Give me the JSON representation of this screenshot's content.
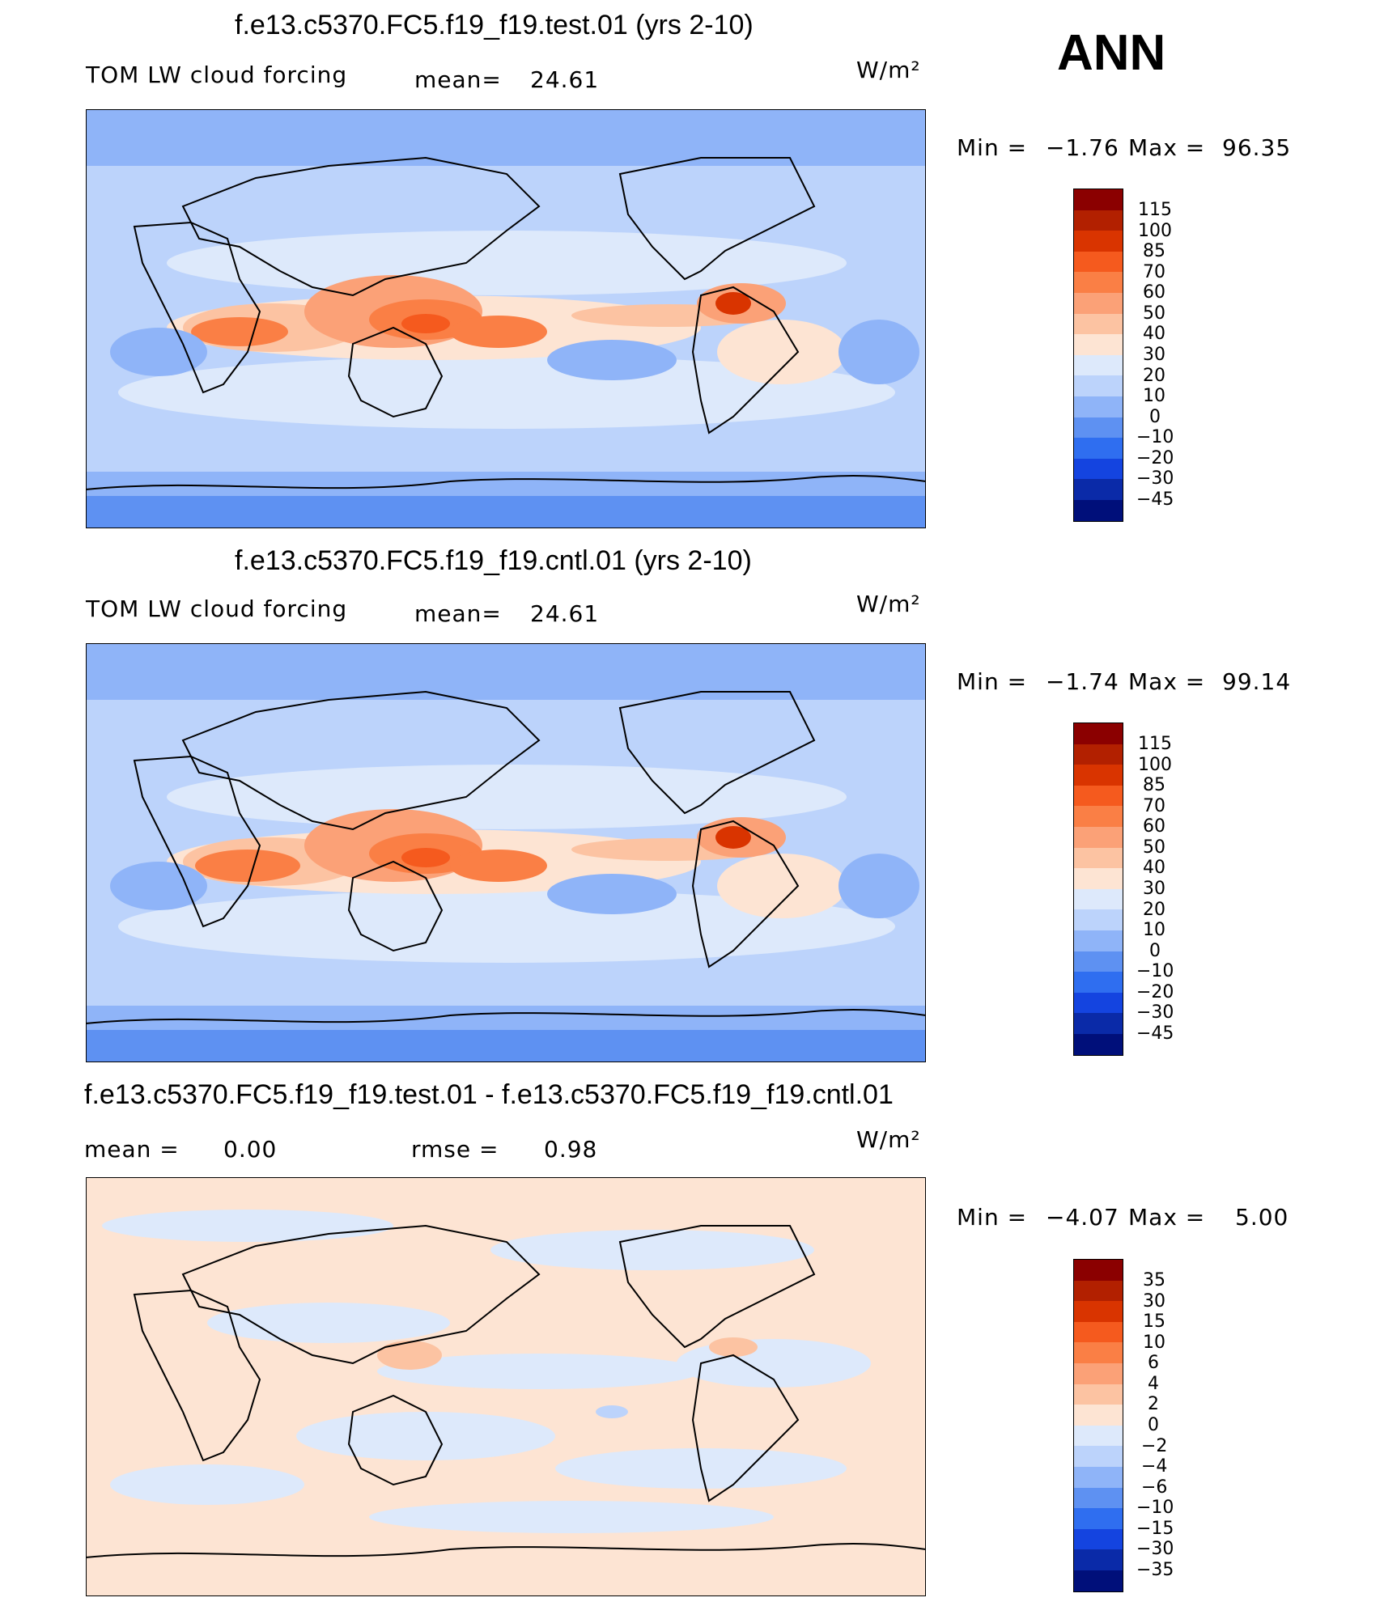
{
  "season": "ANN",
  "panels": [
    {
      "title": "f.e13.c5370.FC5.f19_f19.test.01 (yrs 2-10)",
      "left_label": "TOM LW cloud forcing",
      "mean_label": "mean=",
      "mean_value": "24.61",
      "units": "W/m²",
      "min_label": "Min =",
      "min_value": "−1.76",
      "max_label": "Max =",
      "max_value": "96.35",
      "scale_labels": [
        "115",
        "100",
        "85",
        "70",
        "60",
        "50",
        "40",
        "30",
        "20",
        "10",
        "0",
        "−10",
        "−20",
        "−30",
        "−45"
      ]
    },
    {
      "title": "f.e13.c5370.FC5.f19_f19.cntl.01 (yrs 2-10)",
      "left_label": "TOM LW cloud forcing",
      "mean_label": "mean=",
      "mean_value": "24.61",
      "units": "W/m²",
      "min_label": "Min =",
      "min_value": "−1.74",
      "max_label": "Max =",
      "max_value": "99.14",
      "scale_labels": [
        "115",
        "100",
        "85",
        "70",
        "60",
        "50",
        "40",
        "30",
        "20",
        "10",
        "0",
        "−10",
        "−20",
        "−30",
        "−45"
      ]
    },
    {
      "title": "f.e13.c5370.FC5.f19_f19.test.01 - f.e13.c5370.FC5.f19_f19.cntl.01",
      "mean_label": "mean =",
      "mean_value": "0.00",
      "rmse_label": "rmse =",
      "rmse_value": "0.98",
      "units": "W/m²",
      "min_label": "Min =",
      "min_value": "−4.07",
      "max_label": "Max =",
      "max_value": "5.00",
      "scale_labels": [
        "35",
        "30",
        "15",
        "10",
        "6",
        "4",
        "2",
        "0",
        "−2",
        "−4",
        "−6",
        "−10",
        "−15",
        "−30",
        "−35"
      ]
    }
  ],
  "colorbar_colors": [
    "#8b0000",
    "#b22000",
    "#d93400",
    "#f55a1e",
    "#fa7f45",
    "#fba177",
    "#fcc3a2",
    "#fde4d3",
    "#dde9fb",
    "#bcd3fb",
    "#8fb4f8",
    "#5e91f2",
    "#2f6ef0",
    "#1444e0",
    "#0a2aa8",
    "#000f7a"
  ]
}
